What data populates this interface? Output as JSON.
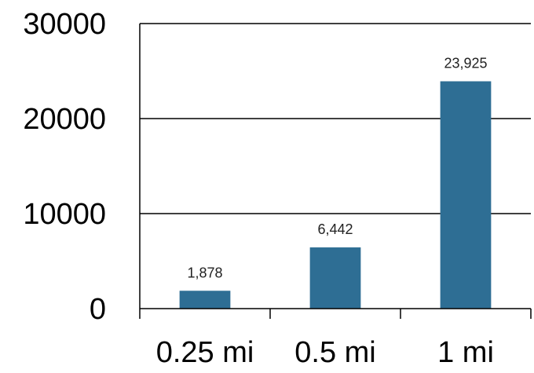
{
  "chart_data": {
    "type": "bar",
    "categories": [
      "0.25 mi",
      "0.5 mi",
      "1 mi"
    ],
    "values": [
      1878,
      6442,
      23925
    ],
    "data_labels": [
      "1,878",
      "6,442",
      "23,925"
    ],
    "title": "",
    "xlabel": "",
    "ylabel": "",
    "ylim": [
      0,
      30000
    ],
    "yticks": [
      0,
      10000,
      20000,
      30000
    ],
    "ytick_labels": [
      "0",
      "10000",
      "20000",
      "30000"
    ],
    "grid": true,
    "legend": "none",
    "bar_color": "#2e6e94",
    "axis_color": "#000000"
  }
}
